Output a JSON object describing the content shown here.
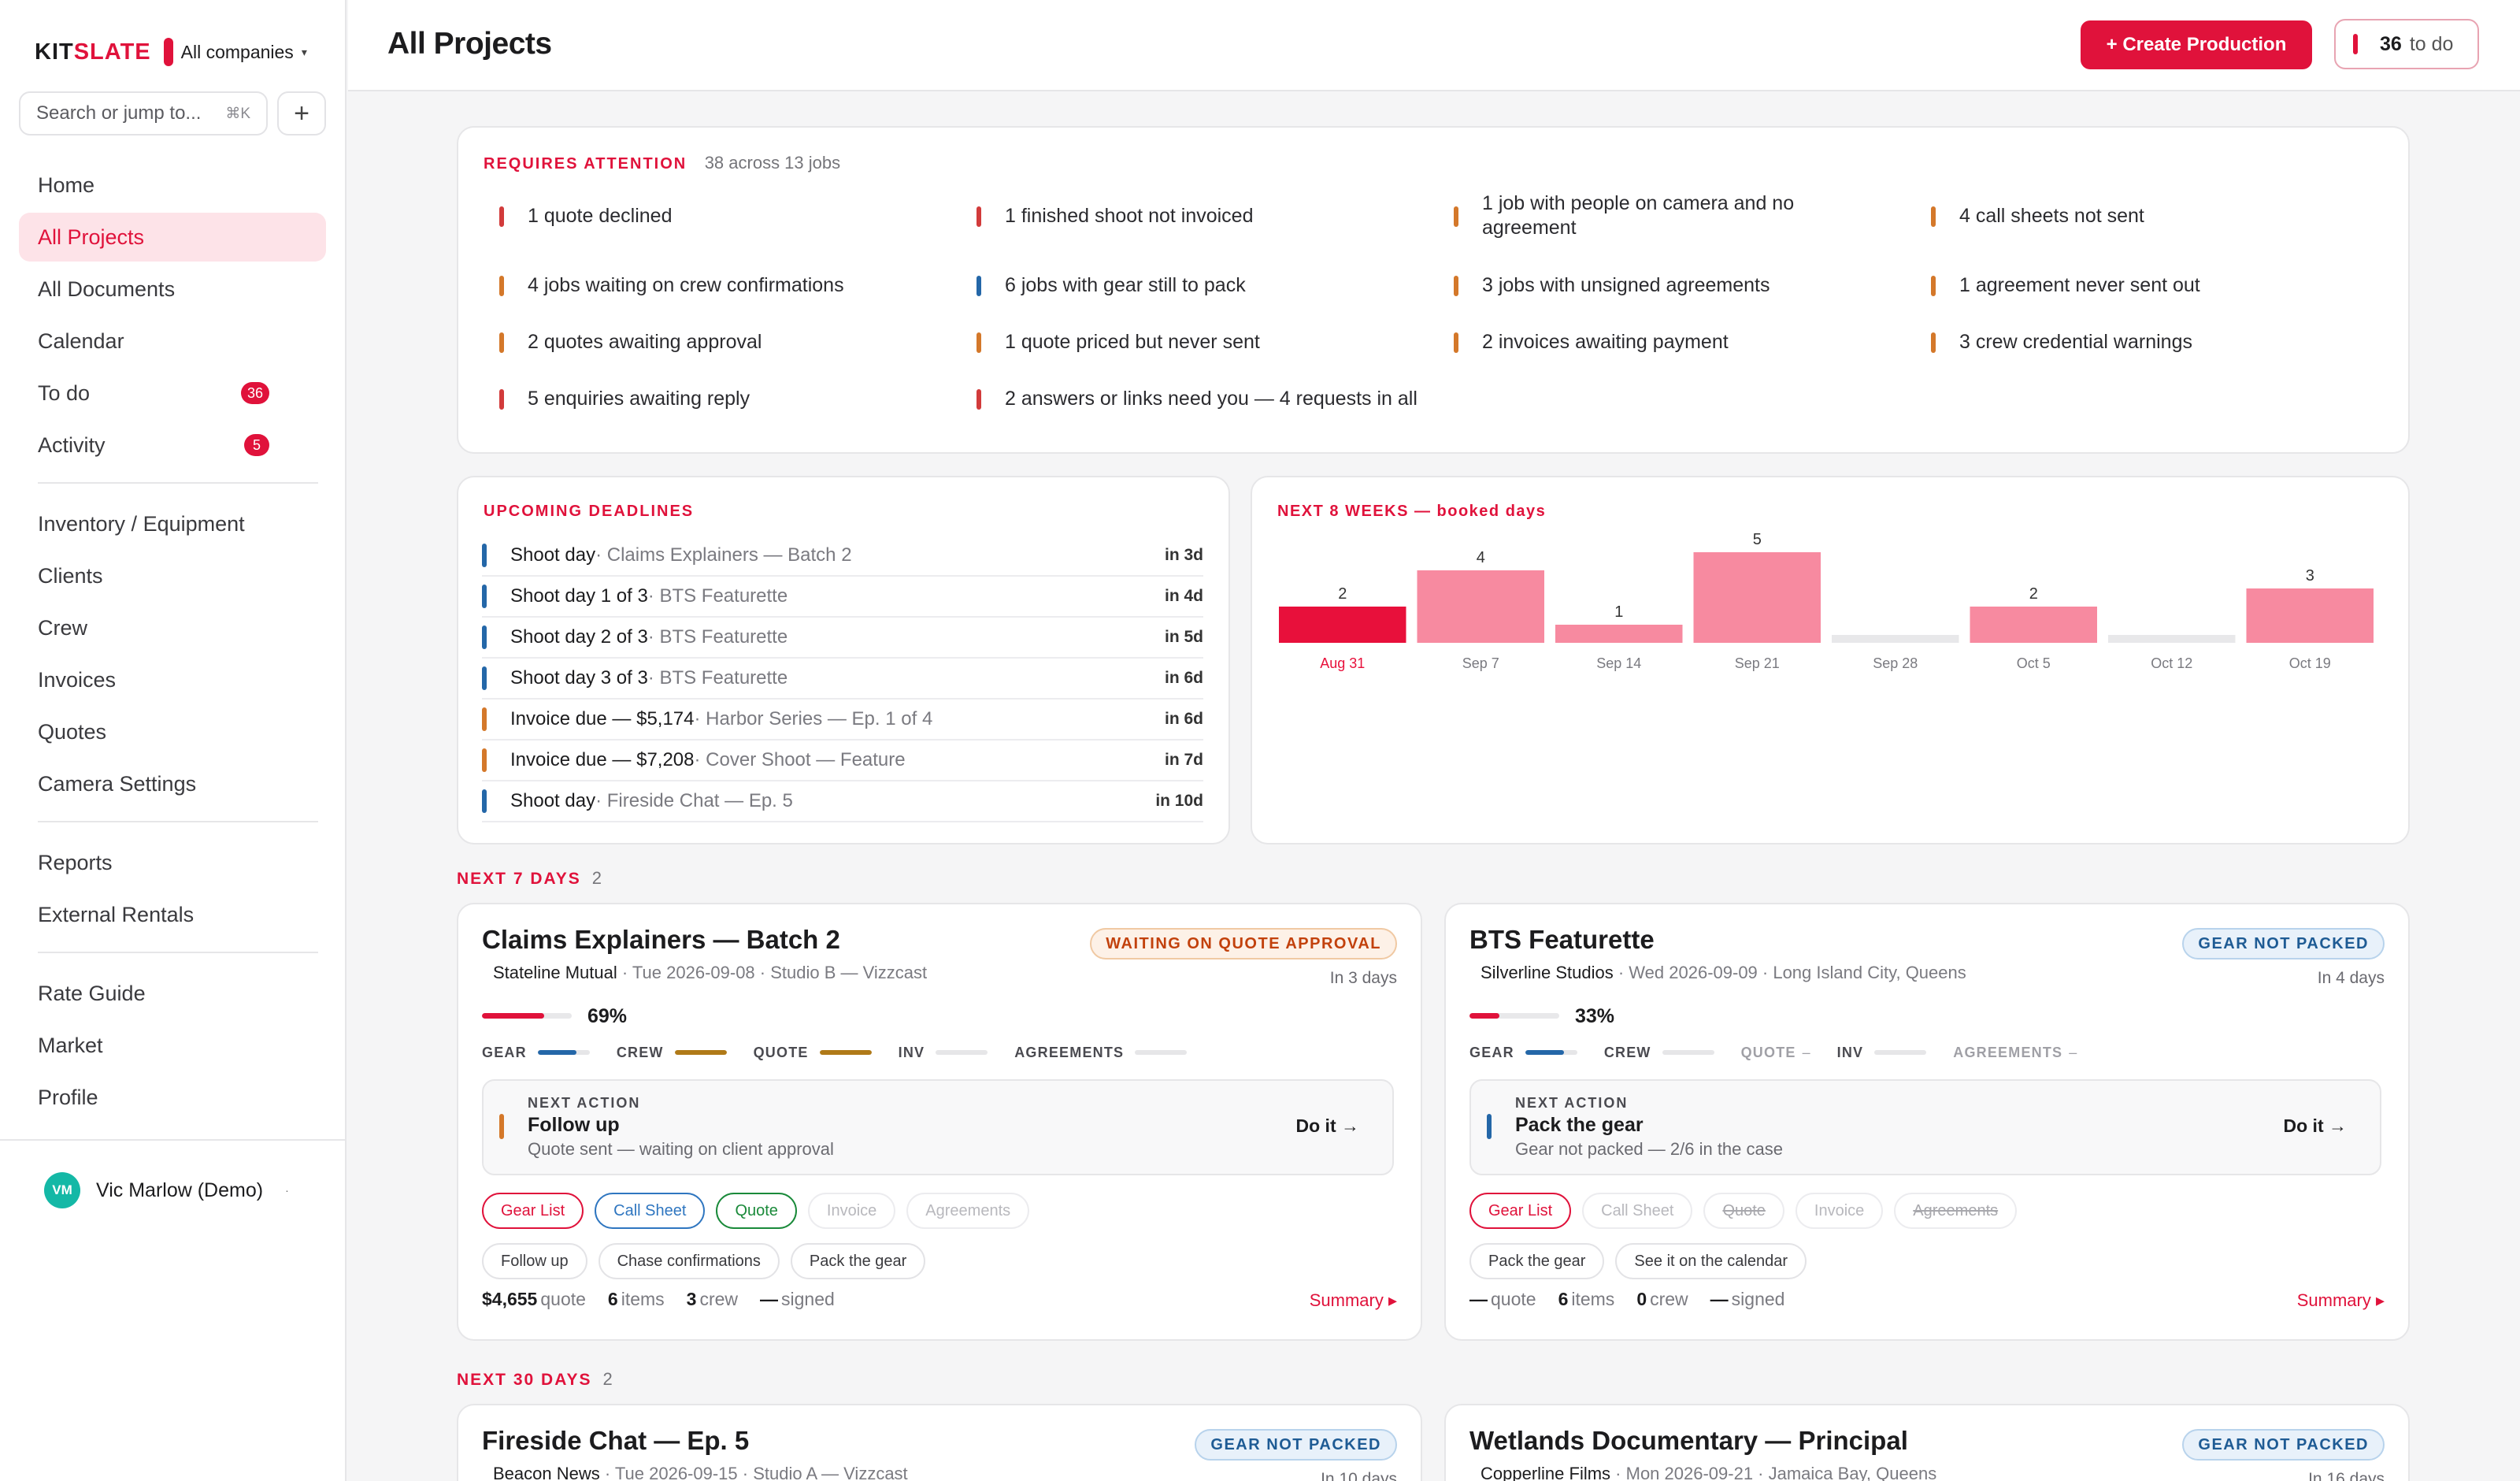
{
  "brand": {
    "name_a": "KIT",
    "name_b": "SLATE",
    "company": "All companies",
    "caret": "▾"
  },
  "search": {
    "placeholder": "Search or jump to...",
    "shortcut": "⌘K",
    "add": "+"
  },
  "nav": {
    "primary": [
      {
        "label": "Home"
      },
      {
        "label": "All Projects",
        "active": true
      },
      {
        "label": "All Documents"
      },
      {
        "label": "Calendar"
      },
      {
        "label": "To do",
        "badge": "36"
      },
      {
        "label": "Activity",
        "badge": "5"
      }
    ],
    "secondary": [
      "Inventory / Equipment",
      "Clients",
      "Crew",
      "Invoices",
      "Quotes",
      "Camera Settings"
    ],
    "tertiary": [
      "Reports",
      "External Rentals"
    ],
    "quaternary": [
      "Rate Guide",
      "Market",
      "Profile"
    ]
  },
  "user": {
    "initials": "VM",
    "name": "Vic Marlow (Demo)",
    "menu": "·"
  },
  "header": {
    "title": "All Projects",
    "create_label": "+ Create Production",
    "todo_count": "36",
    "todo_label": "to do"
  },
  "colors": {
    "accent": "#e0123b",
    "red": "#d23b3b",
    "orange": "#d4782a",
    "blue": "#2467a8",
    "chart_pink": "#f78aa0",
    "chart_current": "#e8103b"
  },
  "attention": {
    "title": "REQUIRES ATTENTION",
    "summary": "38 across 13 jobs",
    "items": [
      {
        "text": "1 quote declined",
        "color": "red"
      },
      {
        "text": "1 finished shoot not invoiced",
        "color": "red"
      },
      {
        "text": "1 job with people on camera and no agreement",
        "color": "orange"
      },
      {
        "text": "4 call sheets not sent",
        "color": "orange"
      },
      {
        "text": "4 jobs waiting on crew confirmations",
        "color": "orange"
      },
      {
        "text": "6 jobs with gear still to pack",
        "color": "blue"
      },
      {
        "text": "3 jobs with unsigned agreements",
        "color": "orange"
      },
      {
        "text": "1 agreement never sent out",
        "color": "orange"
      },
      {
        "text": "2 quotes awaiting approval",
        "color": "orange"
      },
      {
        "text": "1 quote priced but never sent",
        "color": "orange"
      },
      {
        "text": "2 invoices awaiting payment",
        "color": "orange"
      },
      {
        "text": "3 crew credential warnings",
        "color": "orange"
      },
      {
        "text": "5 enquiries awaiting reply",
        "color": "red"
      },
      {
        "text": "2 answers or links need you — 4 requests in all",
        "color": "red"
      }
    ]
  },
  "deadlines": {
    "title": "UPCOMING DEADLINES",
    "rows": [
      {
        "main": "Shoot day",
        "sub": " · Claims Explainers — Batch 2",
        "when": "in 3d",
        "color": "blue"
      },
      {
        "main": "Shoot day 1 of 3",
        "sub": " · BTS Featurette",
        "when": "in 4d",
        "color": "blue"
      },
      {
        "main": "Shoot day 2 of 3",
        "sub": " · BTS Featurette",
        "when": "in 5d",
        "color": "blue"
      },
      {
        "main": "Shoot day 3 of 3",
        "sub": " · BTS Featurette",
        "when": "in 6d",
        "color": "blue"
      },
      {
        "main": "Invoice due — $5,174",
        "sub": " · Harbor Series — Ep. 1 of 4",
        "when": "in 6d",
        "color": "orange"
      },
      {
        "main": "Invoice due — $7,208",
        "sub": " · Cover Shoot — Feature",
        "when": "in 7d",
        "color": "orange"
      },
      {
        "main": "Shoot day",
        "sub": " · Fireside Chat — Ep. 5",
        "when": "in 10d",
        "color": "blue"
      }
    ]
  },
  "weeks": {
    "title": "NEXT 8 WEEKS — booked days"
  },
  "chart_data": {
    "type": "bar",
    "title": "NEXT 8 WEEKS — booked days",
    "categories": [
      "Aug 31",
      "Sep 7",
      "Sep 14",
      "Sep 21",
      "Sep 28",
      "Oct 5",
      "Oct 12",
      "Oct 19"
    ],
    "values": [
      2,
      4,
      1,
      5,
      0,
      2,
      0,
      3
    ],
    "ylim": [
      0,
      5
    ],
    "highlight_index": 0,
    "grid": false,
    "legend": "none"
  },
  "groups": [
    {
      "label": "NEXT 7 DAYS",
      "count": "2"
    },
    {
      "label": "NEXT 30 DAYS",
      "count": "2"
    }
  ],
  "projects": [
    {
      "title": "Claims Explainers — Batch 2",
      "client": "Stateline Mutual",
      "meta": " · Tue 2026-09-08 · Studio B — Vizzcast",
      "status": "WAITING ON QUOTE APPROVAL",
      "status_tone": "orange",
      "in_days": "In 3 days",
      "progress_pct": "69%",
      "progress": 0.69,
      "stats": [
        {
          "label": "GEAR",
          "fill": 0.75,
          "color": "#2467a8"
        },
        {
          "label": "CREW",
          "fill": 1.0,
          "color": "#b07a18"
        },
        {
          "label": "QUOTE",
          "fill": 1.0,
          "color": "#b07a18"
        },
        {
          "label": "INV",
          "fill": 0.0,
          "color": "#e6e6e8"
        },
        {
          "label": "AGREEMENTS",
          "fill": 0.0,
          "color": "#e6e6e8"
        }
      ],
      "next_label": "NEXT ACTION",
      "next_title": "Follow up",
      "next_desc": "Quote sent — waiting on client approval",
      "next_color": "orange",
      "doit": "Do it →",
      "chips1": [
        {
          "text": "Gear List",
          "tone": "red"
        },
        {
          "text": "Call Sheet",
          "tone": "blue"
        },
        {
          "text": "Quote",
          "tone": "green"
        },
        {
          "text": "Invoice",
          "tone": "dim"
        },
        {
          "text": "Agreements",
          "tone": "dim"
        }
      ],
      "chips2": [
        {
          "text": "Follow up"
        },
        {
          "text": "Chase confirmations"
        },
        {
          "text": "Pack the gear"
        }
      ],
      "totals": {
        "quote_val": "$4,655",
        "quote_lbl": "quote",
        "items_val": "6",
        "items_lbl": "items",
        "crew_val": "3",
        "crew_lbl": "crew",
        "signed_val": "—",
        "signed_lbl": "signed"
      },
      "summary": "Summary ▸"
    },
    {
      "title": "BTS Featurette",
      "client": "Silverline Studios",
      "meta": " · Wed 2026-09-09 · Long Island City, Queens",
      "status": "GEAR NOT PACKED",
      "status_tone": "blue",
      "in_days": "In 4 days",
      "progress_pct": "33%",
      "progress": 0.33,
      "stats": [
        {
          "label": "GEAR",
          "fill": 0.75,
          "color": "#2467a8"
        },
        {
          "label": "CREW",
          "fill": 0.0,
          "color": "#e6e6e8"
        },
        {
          "label": "QUOTE",
          "dash": "–"
        },
        {
          "label": "INV",
          "fill": 0.0,
          "color": "#e6e6e8"
        },
        {
          "label": "AGREEMENTS",
          "dash": "–"
        }
      ],
      "next_label": "NEXT ACTION",
      "next_title": "Pack the gear",
      "next_desc": "Gear not packed — 2/6 in the case",
      "next_color": "blue",
      "doit": "Do it →",
      "chips1": [
        {
          "text": "Gear List",
          "tone": "red"
        },
        {
          "text": "Call Sheet",
          "tone": "dim"
        },
        {
          "text": "Quote",
          "tone": "strike"
        },
        {
          "text": "Invoice",
          "tone": "dim"
        },
        {
          "text": "Agreements",
          "tone": "strike"
        }
      ],
      "chips2": [
        {
          "text": "Pack the gear"
        },
        {
          "text": "See it on the calendar"
        }
      ],
      "totals": {
        "quote_val": "—",
        "quote_lbl": "quote",
        "items_val": "6",
        "items_lbl": "items",
        "crew_val": "0",
        "crew_lbl": "crew",
        "signed_val": "—",
        "signed_lbl": "signed"
      },
      "summary": "Summary ▸"
    },
    {
      "title": "Fireside Chat — Ep. 5",
      "client": "Beacon News",
      "meta": " · Tue 2026-09-15 · Studio A — Vizzcast",
      "status": "GEAR NOT PACKED",
      "status_tone": "blue",
      "in_days": "In 10 days"
    },
    {
      "title": "Wetlands Documentary — Principal",
      "client": "Copperline Films",
      "meta": " · Mon 2026-09-21 · Jamaica Bay, Queens",
      "status": "GEAR NOT PACKED",
      "status_tone": "blue",
      "in_days": "In 16 days"
    }
  ]
}
